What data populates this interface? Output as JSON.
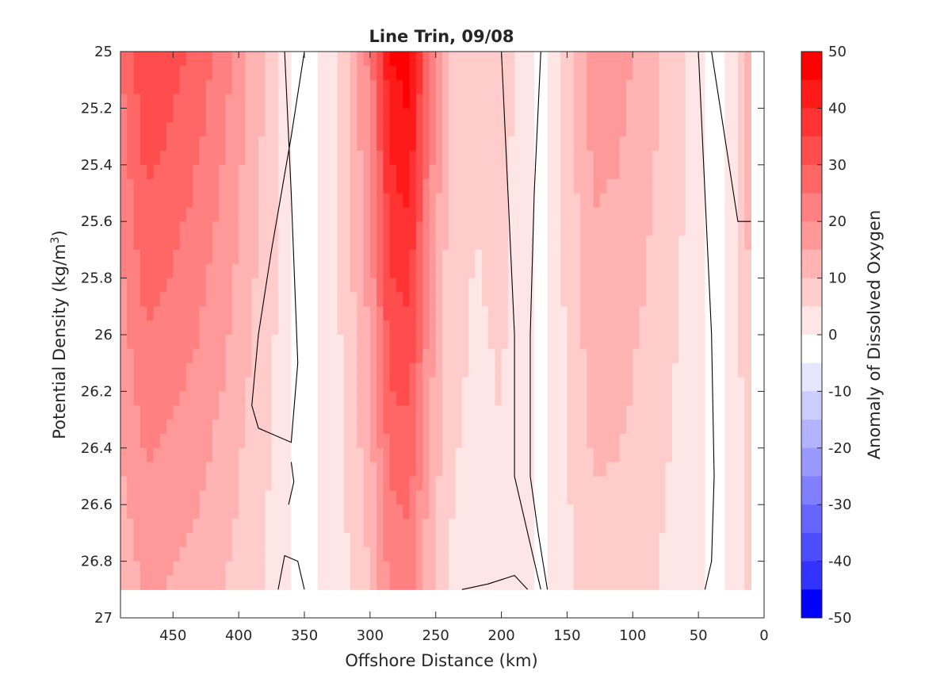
{
  "chart_data": {
    "type": "contour",
    "title": "Line Trin, 09/08",
    "xlabel": "Offshore Distance (km)",
    "ylabel_main": "Potential Density (kg/m",
    "ylabel_sup": "3",
    "ylabel_close": ")",
    "colorbar_label": "Anomaly of Dissolved Oxygen",
    "x_axis": {
      "min": 0,
      "max": 490,
      "reversed": true,
      "ticks": [
        450,
        400,
        350,
        300,
        250,
        200,
        150,
        100,
        50,
        0
      ]
    },
    "y_axis": {
      "min": 25,
      "max": 27,
      "reversed": true,
      "ticks": [
        "25",
        "25.2",
        "25.4",
        "25.6",
        "25.8",
        "26",
        "26.2",
        "26.4",
        "26.6",
        "26.8",
        "27"
      ]
    },
    "colorbar": {
      "min": -50,
      "max": 50,
      "ticks": [
        "50",
        "40",
        "30",
        "20",
        "10",
        "0",
        "-10",
        "-20",
        "-30",
        "-40",
        "-50"
      ],
      "levels": [
        {
          "from": 45,
          "to": 50,
          "color": "#ff0000"
        },
        {
          "from": 40,
          "to": 45,
          "color": "#ff1a1a"
        },
        {
          "from": 35,
          "to": 40,
          "color": "#ff3333"
        },
        {
          "from": 30,
          "to": 35,
          "color": "#ff4d4d"
        },
        {
          "from": 25,
          "to": 30,
          "color": "#ff6666"
        },
        {
          "from": 20,
          "to": 25,
          "color": "#ff8080"
        },
        {
          "from": 15,
          "to": 20,
          "color": "#ff9999"
        },
        {
          "from": 10,
          "to": 15,
          "color": "#ffb3b3"
        },
        {
          "from": 5,
          "to": 10,
          "color": "#ffcccc"
        },
        {
          "from": 0,
          "to": 5,
          "color": "#ffe6e6"
        },
        {
          "from": -5,
          "to": 0,
          "color": "#ffffff"
        },
        {
          "from": -10,
          "to": -5,
          "color": "#e6e6ff"
        },
        {
          "from": -15,
          "to": -10,
          "color": "#ccccff"
        },
        {
          "from": -20,
          "to": -15,
          "color": "#b3b3ff"
        },
        {
          "from": -25,
          "to": -20,
          "color": "#9999ff"
        },
        {
          "from": -30,
          "to": -25,
          "color": "#8080ff"
        },
        {
          "from": -35,
          "to": -30,
          "color": "#6666ff"
        },
        {
          "from": -40,
          "to": -35,
          "color": "#4d4dff"
        },
        {
          "from": -45,
          "to": -40,
          "color": "#3333ff"
        },
        {
          "from": -50,
          "to": -45,
          "color": "#0000ff"
        }
      ]
    },
    "data_extent": {
      "x_min": 10,
      "x_max": 490,
      "y_min": 25,
      "y_max": 26.9
    },
    "field_profile": [
      {
        "x": 490,
        "anomaly": 25
      },
      {
        "x": 470,
        "anomaly": 35
      },
      {
        "x": 450,
        "anomaly": 32
      },
      {
        "x": 430,
        "anomaly": 28
      },
      {
        "x": 410,
        "anomaly": 22
      },
      {
        "x": 390,
        "anomaly": 14
      },
      {
        "x": 370,
        "anomaly": 6
      },
      {
        "x": 355,
        "anomaly": -3
      },
      {
        "x": 340,
        "anomaly": 0
      },
      {
        "x": 320,
        "anomaly": 8
      },
      {
        "x": 300,
        "anomaly": 22
      },
      {
        "x": 285,
        "anomaly": 45
      },
      {
        "x": 270,
        "anomaly": 48
      },
      {
        "x": 255,
        "anomaly": 25
      },
      {
        "x": 240,
        "anomaly": 10
      },
      {
        "x": 220,
        "anomaly": 6
      },
      {
        "x": 200,
        "anomaly": 8
      },
      {
        "x": 185,
        "anomaly": 3
      },
      {
        "x": 170,
        "anomaly": -2
      },
      {
        "x": 150,
        "anomaly": 8
      },
      {
        "x": 130,
        "anomaly": 18
      },
      {
        "x": 110,
        "anomaly": 17
      },
      {
        "x": 90,
        "anomaly": 13
      },
      {
        "x": 70,
        "anomaly": 8
      },
      {
        "x": 50,
        "anomaly": 3
      },
      {
        "x": 35,
        "anomaly": -5
      },
      {
        "x": 20,
        "anomaly": 5
      },
      {
        "x": 10,
        "anomaly": 15
      }
    ],
    "zero_contours": [
      [
        [
          365,
          25.0
        ],
        [
          360,
          25.5
        ],
        [
          355,
          26.1
        ],
        [
          360,
          26.38
        ],
        [
          375,
          26.35
        ],
        [
          385,
          26.33
        ],
        [
          390,
          26.25
        ],
        [
          385,
          26.0
        ],
        [
          375,
          25.7
        ],
        [
          360,
          25.3
        ],
        [
          350,
          25.0
        ]
      ],
      [
        [
          200,
          25.0
        ],
        [
          195,
          25.5
        ],
        [
          190,
          26.0
        ],
        [
          190,
          26.5
        ],
        [
          185,
          26.6
        ],
        [
          175,
          26.8
        ],
        [
          170,
          26.9
        ]
      ],
      [
        [
          170,
          25.0
        ],
        [
          175,
          25.5
        ],
        [
          178,
          26.0
        ],
        [
          178,
          26.5
        ],
        [
          172,
          26.7
        ],
        [
          165,
          26.9
        ]
      ],
      [
        [
          50,
          25.0
        ],
        [
          45,
          25.5
        ],
        [
          40,
          26.0
        ],
        [
          38,
          26.5
        ],
        [
          40,
          26.8
        ],
        [
          45,
          26.9
        ]
      ],
      [
        [
          40,
          25.0
        ],
        [
          30,
          25.3
        ],
        [
          20,
          25.6
        ],
        [
          10,
          25.6
        ]
      ],
      [
        [
          360,
          26.45
        ],
        [
          358,
          26.52
        ],
        [
          362,
          26.6
        ]
      ],
      [
        [
          370,
          26.9
        ],
        [
          365,
          26.78
        ],
        [
          355,
          26.8
        ],
        [
          350,
          26.9
        ]
      ],
      [
        [
          230,
          26.9
        ],
        [
          210,
          26.88
        ],
        [
          190,
          26.85
        ],
        [
          180,
          26.9
        ]
      ]
    ]
  }
}
